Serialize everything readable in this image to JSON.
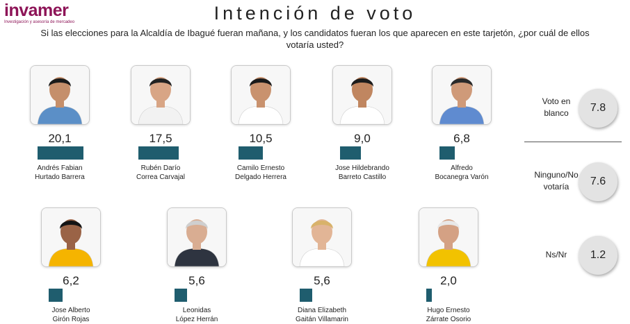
{
  "logo": {
    "name": "invamer",
    "tagline": "Investigación y asesoría de mercadeo"
  },
  "title": "Intención de voto",
  "question": "Si las elecciones para la Alcaldía de Ibagué fueran mañana, y los candidatos fueran los que aparecen en este tarjetón, ¿por cuál de ellos votaría usted?",
  "colors": {
    "bar": "#1f5d6e",
    "brand": "#8d1457",
    "circle": "#e3e3e3"
  },
  "chart_data": {
    "type": "bar",
    "title": "Intención de voto",
    "categories": [
      "Andrés Fabian Hurtado Barrera",
      "Rubén Darío Correa Carvajal",
      "Camilo Ernesto Delgado Herrera",
      "Jose Hildebrando Barreto Castillo",
      "Alfredo Bocanegra Varón",
      "Jose Alberto Girón Rojas",
      "Leonidas López Herrán",
      "Diana Elizabeth Gaitán Villamarin",
      "Hugo Ernesto Zárrate Osorio"
    ],
    "values": [
      20.1,
      17.5,
      10.5,
      9.0,
      6.8,
      6.2,
      5.6,
      5.6,
      2.0
    ],
    "candidates": [
      {
        "line1": "Andrés Fabian",
        "line2": "Hurtado Barrera",
        "value": 20.1,
        "label": "20,1"
      },
      {
        "line1": "Rubén Darío",
        "line2": "Correa Carvajal",
        "value": 17.5,
        "label": "17,5"
      },
      {
        "line1": "Camilo Ernesto",
        "line2": "Delgado Herrera",
        "value": 10.5,
        "label": "10,5"
      },
      {
        "line1": "Jose Hildebrando",
        "line2": "Barreto Castillo",
        "value": 9.0,
        "label": "9,0"
      },
      {
        "line1": "Alfredo",
        "line2": "Bocanegra Varón",
        "value": 6.8,
        "label": "6,8"
      },
      {
        "line1": "Jose Alberto",
        "line2": "Girón Rojas",
        "value": 6.2,
        "label": "6,2"
      },
      {
        "line1": "Leonidas",
        "line2": "López Herrán",
        "value": 5.6,
        "label": "5,6"
      },
      {
        "line1": "Diana Elizabeth",
        "line2": "Gaitán Villamarin",
        "value": 5.6,
        "label": "5,6"
      },
      {
        "line1": "Hugo Ernesto",
        "line2": "Zárrate Osorio",
        "value": 2.0,
        "label": "2,0"
      }
    ],
    "other_responses": [
      {
        "line1": "Voto en",
        "line2": "blanco",
        "value": 7.8,
        "label": "7.8"
      },
      {
        "line1": "Ninguno/No",
        "line2": "votaría",
        "value": 7.6,
        "label": "7.6"
      },
      {
        "line1": "Ns/Nr",
        "line2": "",
        "value": 1.2,
        "label": "1.2"
      }
    ]
  }
}
